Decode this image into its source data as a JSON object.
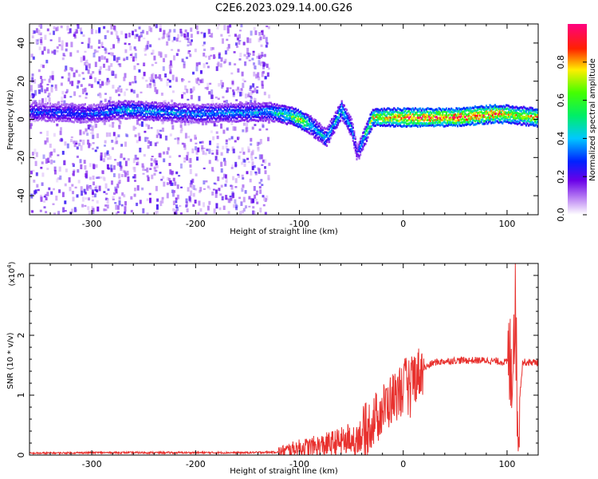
{
  "title": "C2E6.2023.029.14.00.G26",
  "chart_data": [
    {
      "type": "heatmap",
      "xlabel": "Height of straight line (km)",
      "ylabel": "Frequency (Hz)",
      "xlim": [
        -360,
        130
      ],
      "ylim": [
        -50,
        50
      ],
      "x_ticks": [
        -300,
        -200,
        -100,
        0,
        100
      ],
      "y_ticks": [
        -40,
        -20,
        0,
        20,
        40
      ],
      "colorbar": {
        "label": "Normalized spectral amplitude",
        "range": [
          0,
          1
        ],
        "ticks": [
          0.0,
          0.2,
          0.4,
          0.6,
          0.8
        ],
        "colormap": "rainbow (white-violet-blue-cyan-green-yellow-red-magenta)"
      },
      "noise_region": {
        "x": [
          -360,
          -130
        ],
        "y": [
          -50,
          50
        ],
        "amplitude": 0.15
      },
      "ridge": [
        {
          "x": -360,
          "y": 4,
          "amplitude": 0.3
        },
        {
          "x": -300,
          "y": 3,
          "amplitude": 0.3
        },
        {
          "x": -270,
          "y": 5,
          "amplitude": 0.4
        },
        {
          "x": -200,
          "y": 3,
          "amplitude": 0.35
        },
        {
          "x": -130,
          "y": 4,
          "amplitude": 0.4
        },
        {
          "x": -110,
          "y": 2,
          "amplitude": 0.55
        },
        {
          "x": -100,
          "y": 0,
          "amplitude": 0.75
        },
        {
          "x": -90,
          "y": -3,
          "amplitude": 0.45
        },
        {
          "x": -75,
          "y": -10,
          "amplitude": 0.4
        },
        {
          "x": -60,
          "y": 5,
          "amplitude": 0.45
        },
        {
          "x": -50,
          "y": -5,
          "amplitude": 0.4
        },
        {
          "x": -45,
          "y": -18,
          "amplitude": 0.25
        },
        {
          "x": -30,
          "y": 1,
          "amplitude": 0.7
        },
        {
          "x": 0,
          "y": 1,
          "amplitude": 0.9
        },
        {
          "x": 50,
          "y": 1,
          "amplitude": 0.95
        },
        {
          "x": 90,
          "y": 3,
          "amplitude": 0.9
        },
        {
          "x": 110,
          "y": 2,
          "amplitude": 0.7
        },
        {
          "x": 130,
          "y": 1,
          "amplitude": 0.85
        }
      ]
    },
    {
      "type": "line",
      "xlabel": "Height of straight line (km)",
      "ylabel": "SNR (10 * v/v)",
      "y_scale_label": "(x10",
      "y_scale_exponent": "4",
      "y_scale_suffix": ")",
      "xlim": [
        -360,
        130
      ],
      "ylim": [
        0,
        3.2
      ],
      "x_ticks": [
        -300,
        -200,
        -100,
        0,
        100
      ],
      "y_ticks": [
        0,
        1,
        2,
        3
      ],
      "series": [
        {
          "color": "#e8312e",
          "x": [
            -360,
            -300,
            -250,
            -200,
            -150,
            -120,
            -100,
            -80,
            -60,
            -40,
            -30,
            -20,
            -10,
            0,
            10,
            20,
            30,
            50,
            80,
            100,
            105,
            108,
            110,
            115,
            130
          ],
          "y": [
            0.03,
            0.04,
            0.04,
            0.04,
            0.04,
            0.05,
            0.12,
            0.15,
            0.22,
            0.35,
            0.55,
            0.75,
            0.95,
            1.15,
            1.3,
            1.45,
            1.55,
            1.58,
            1.58,
            1.55,
            1.5,
            2.8,
            0.5,
            1.55,
            1.55
          ]
        }
      ]
    }
  ]
}
